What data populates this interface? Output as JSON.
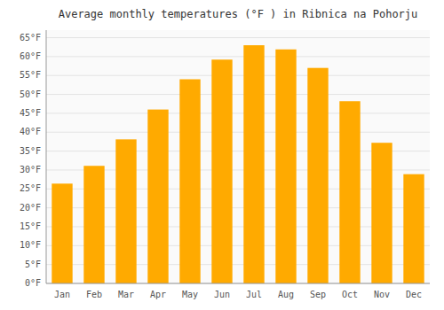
{
  "chart_data": {
    "type": "bar",
    "title": "Average monthly temperatures (°F ) in Ribnica na Pohorju",
    "categories": [
      "Jan",
      "Feb",
      "Mar",
      "Apr",
      "May",
      "Jun",
      "Jul",
      "Aug",
      "Sep",
      "Oct",
      "Nov",
      "Dec"
    ],
    "values": [
      26.4,
      31.1,
      38.1,
      46.0,
      54.0,
      59.2,
      63.0,
      61.9,
      57.0,
      48.2,
      37.2,
      28.9
    ],
    "color": "#FFAA00",
    "ylim": [
      0,
      67
    ],
    "yticks": [
      {
        "value": 0,
        "label": "0°F"
      },
      {
        "value": 5,
        "label": "5°F"
      },
      {
        "value": 10,
        "label": "10°F"
      },
      {
        "value": 15,
        "label": "15°F"
      },
      {
        "value": 20,
        "label": "20°F"
      },
      {
        "value": 25,
        "label": "25°F"
      },
      {
        "value": 30,
        "label": "30°F"
      },
      {
        "value": 35,
        "label": "35°F"
      },
      {
        "value": 40,
        "label": "40°F"
      },
      {
        "value": 45,
        "label": "45°F"
      },
      {
        "value": 50,
        "label": "50°F"
      },
      {
        "value": 55,
        "label": "55°F"
      },
      {
        "value": 60,
        "label": "60°F"
      },
      {
        "value": 65,
        "label": "65°F"
      }
    ],
    "grid": true
  }
}
